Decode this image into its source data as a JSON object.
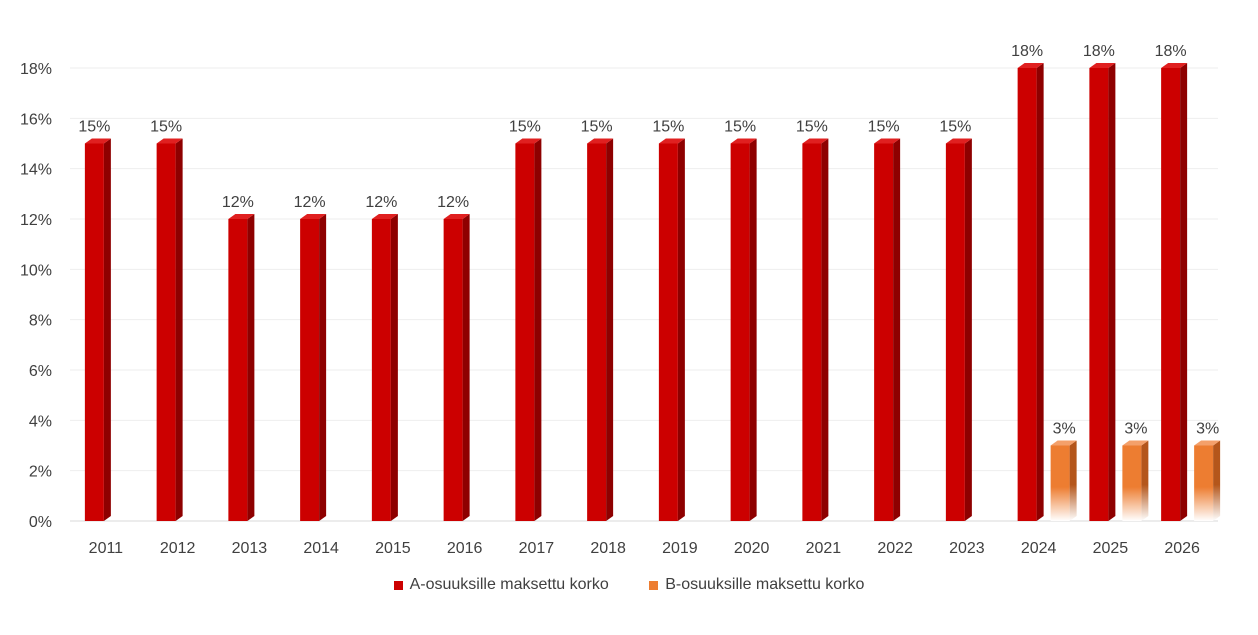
{
  "chart_data": {
    "type": "bar",
    "categories": [
      "2011",
      "2012",
      "2013",
      "2014",
      "2015",
      "2016",
      "2017",
      "2018",
      "2019",
      "2020",
      "2021",
      "2022",
      "2023",
      "2024",
      "2025",
      "2026"
    ],
    "series": [
      {
        "name": "A-osuuksille maksettu korko",
        "color": "#cc0000",
        "values": [
          15,
          15,
          12,
          12,
          12,
          12,
          15,
          15,
          15,
          15,
          15,
          15,
          15,
          18,
          18,
          18
        ],
        "labels": [
          "15%",
          "15%",
          "12%",
          "12%",
          "12%",
          "12%",
          "15%",
          "15%",
          "15%",
          "15%",
          "15%",
          "15%",
          "15%",
          "18%",
          "18%",
          "18%"
        ]
      },
      {
        "name": "B-osuuksille maksettu korko",
        "color": "#ed7d31",
        "values": [
          null,
          null,
          null,
          null,
          null,
          null,
          null,
          null,
          null,
          null,
          null,
          null,
          null,
          3,
          3,
          3
        ],
        "labels": [
          "",
          "",
          "",
          "",
          "",
          "",
          "",
          "",
          "",
          "",
          "",
          "",
          "",
          "3%",
          "3%",
          "3%"
        ]
      }
    ],
    "y_ticks": [
      "0%",
      "2%",
      "4%",
      "6%",
      "8%",
      "10%",
      "12%",
      "14%",
      "16%",
      "18%"
    ],
    "ylim": [
      0,
      18
    ],
    "ylabel": "",
    "xlabel": "",
    "title": "",
    "grid": true,
    "legend_position": "bottom"
  }
}
